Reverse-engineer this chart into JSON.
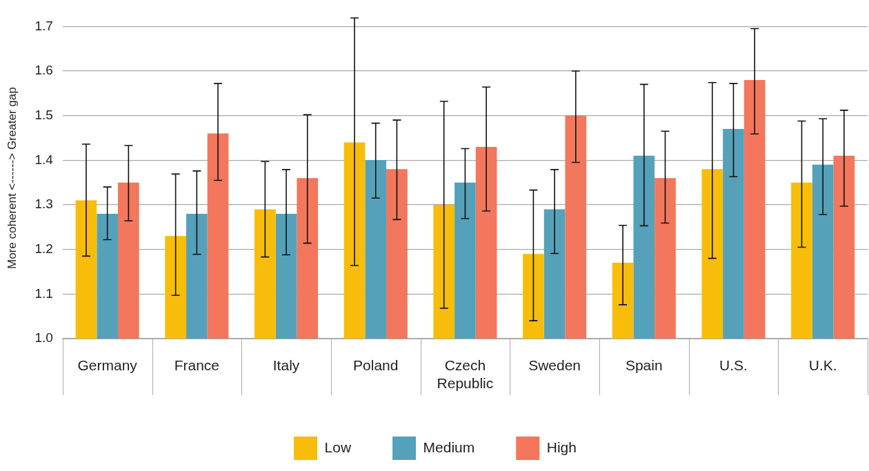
{
  "chart_data": {
    "type": "bar",
    "ylabel": "More coherent <------> Greater gap",
    "categories": [
      "Germany",
      "France",
      "Italy",
      "Poland",
      "Czech Republic",
      "Sweden",
      "Spain",
      "U.S.",
      "U.K."
    ],
    "series": [
      {
        "name": "Low",
        "color": "#f7bd0a",
        "values": [
          1.31,
          1.23,
          1.29,
          1.44,
          1.3,
          1.19,
          1.17,
          1.38,
          1.35
        ],
        "errors": [
          [
            1.185,
            1.436
          ],
          [
            1.097,
            1.369
          ],
          [
            1.183,
            1.397
          ],
          [
            1.164,
            1.719
          ],
          [
            1.068,
            1.532
          ],
          [
            1.04,
            1.333
          ],
          [
            1.076,
            1.254
          ],
          [
            1.18,
            1.574
          ],
          [
            1.205,
            1.488
          ]
        ]
      },
      {
        "name": "Medium",
        "color": "#55a1ba",
        "values": [
          1.28,
          1.28,
          1.28,
          1.4,
          1.35,
          1.29,
          1.41,
          1.47,
          1.39
        ],
        "errors": [
          [
            1.222,
            1.34
          ],
          [
            1.189,
            1.376
          ],
          [
            1.188,
            1.379
          ],
          [
            1.315,
            1.483
          ],
          [
            1.269,
            1.426
          ],
          [
            1.191,
            1.379
          ],
          [
            1.253,
            1.57
          ],
          [
            1.363,
            1.572
          ],
          [
            1.278,
            1.493
          ]
        ]
      },
      {
        "name": "High",
        "color": "#f2775d",
        "values": [
          1.35,
          1.46,
          1.36,
          1.38,
          1.43,
          1.5,
          1.36,
          1.58,
          1.41
        ],
        "errors": [
          [
            1.264,
            1.433
          ],
          [
            1.355,
            1.572
          ],
          [
            1.214,
            1.502
          ],
          [
            1.267,
            1.49
          ],
          [
            1.286,
            1.564
          ],
          [
            1.395,
            1.6
          ],
          [
            1.259,
            1.465
          ],
          [
            1.459,
            1.695
          ],
          [
            1.297,
            1.512
          ]
        ]
      }
    ],
    "ylim": [
      1.0,
      1.72
    ],
    "yticks": [
      {
        "value": 1.0,
        "label": "1.0"
      },
      1.1,
      1.2,
      1.3,
      1.4,
      1.5,
      1.6,
      1.7
    ],
    "grid": "y",
    "legend": "bottom"
  }
}
